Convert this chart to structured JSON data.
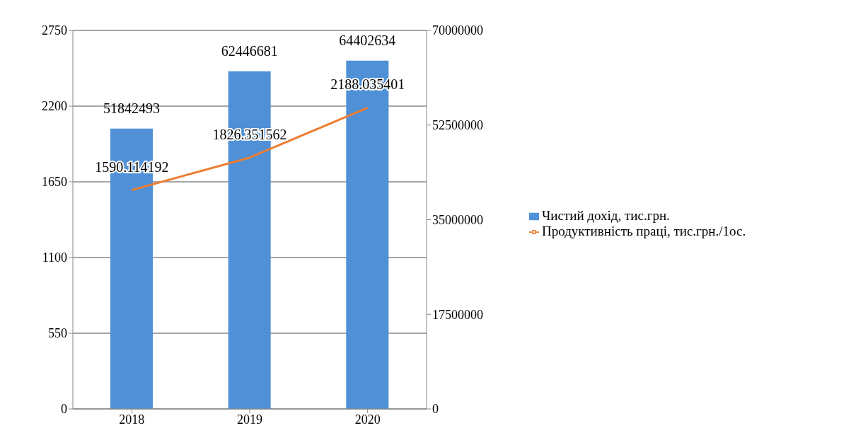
{
  "chart_data": {
    "type": "bar",
    "categories": [
      "2018",
      "2019",
      "2020"
    ],
    "series": [
      {
        "name": "Чистий дохід, тис.грн.",
        "axis": "y2",
        "color": "#4f90d6",
        "values": [
          51842493,
          62446681,
          64402634
        ]
      },
      {
        "name": "Продуктивність праці, тис.грн./1ос.",
        "type": "line",
        "axis": "y",
        "color": "#ed7d31",
        "values": [
          1590.114192,
          1826.351562,
          2188.035401
        ]
      }
    ],
    "ylim": [
      0,
      2750
    ],
    "yticks": [
      0,
      550,
      1100,
      1650,
      2200,
      2750
    ],
    "y2lim": [
      0,
      70000000
    ],
    "y2ticks": [
      0,
      17500000,
      35000000,
      52500000,
      70000000
    ],
    "grid": "y",
    "legend": "right",
    "data_labels": true,
    "marker": "none"
  }
}
